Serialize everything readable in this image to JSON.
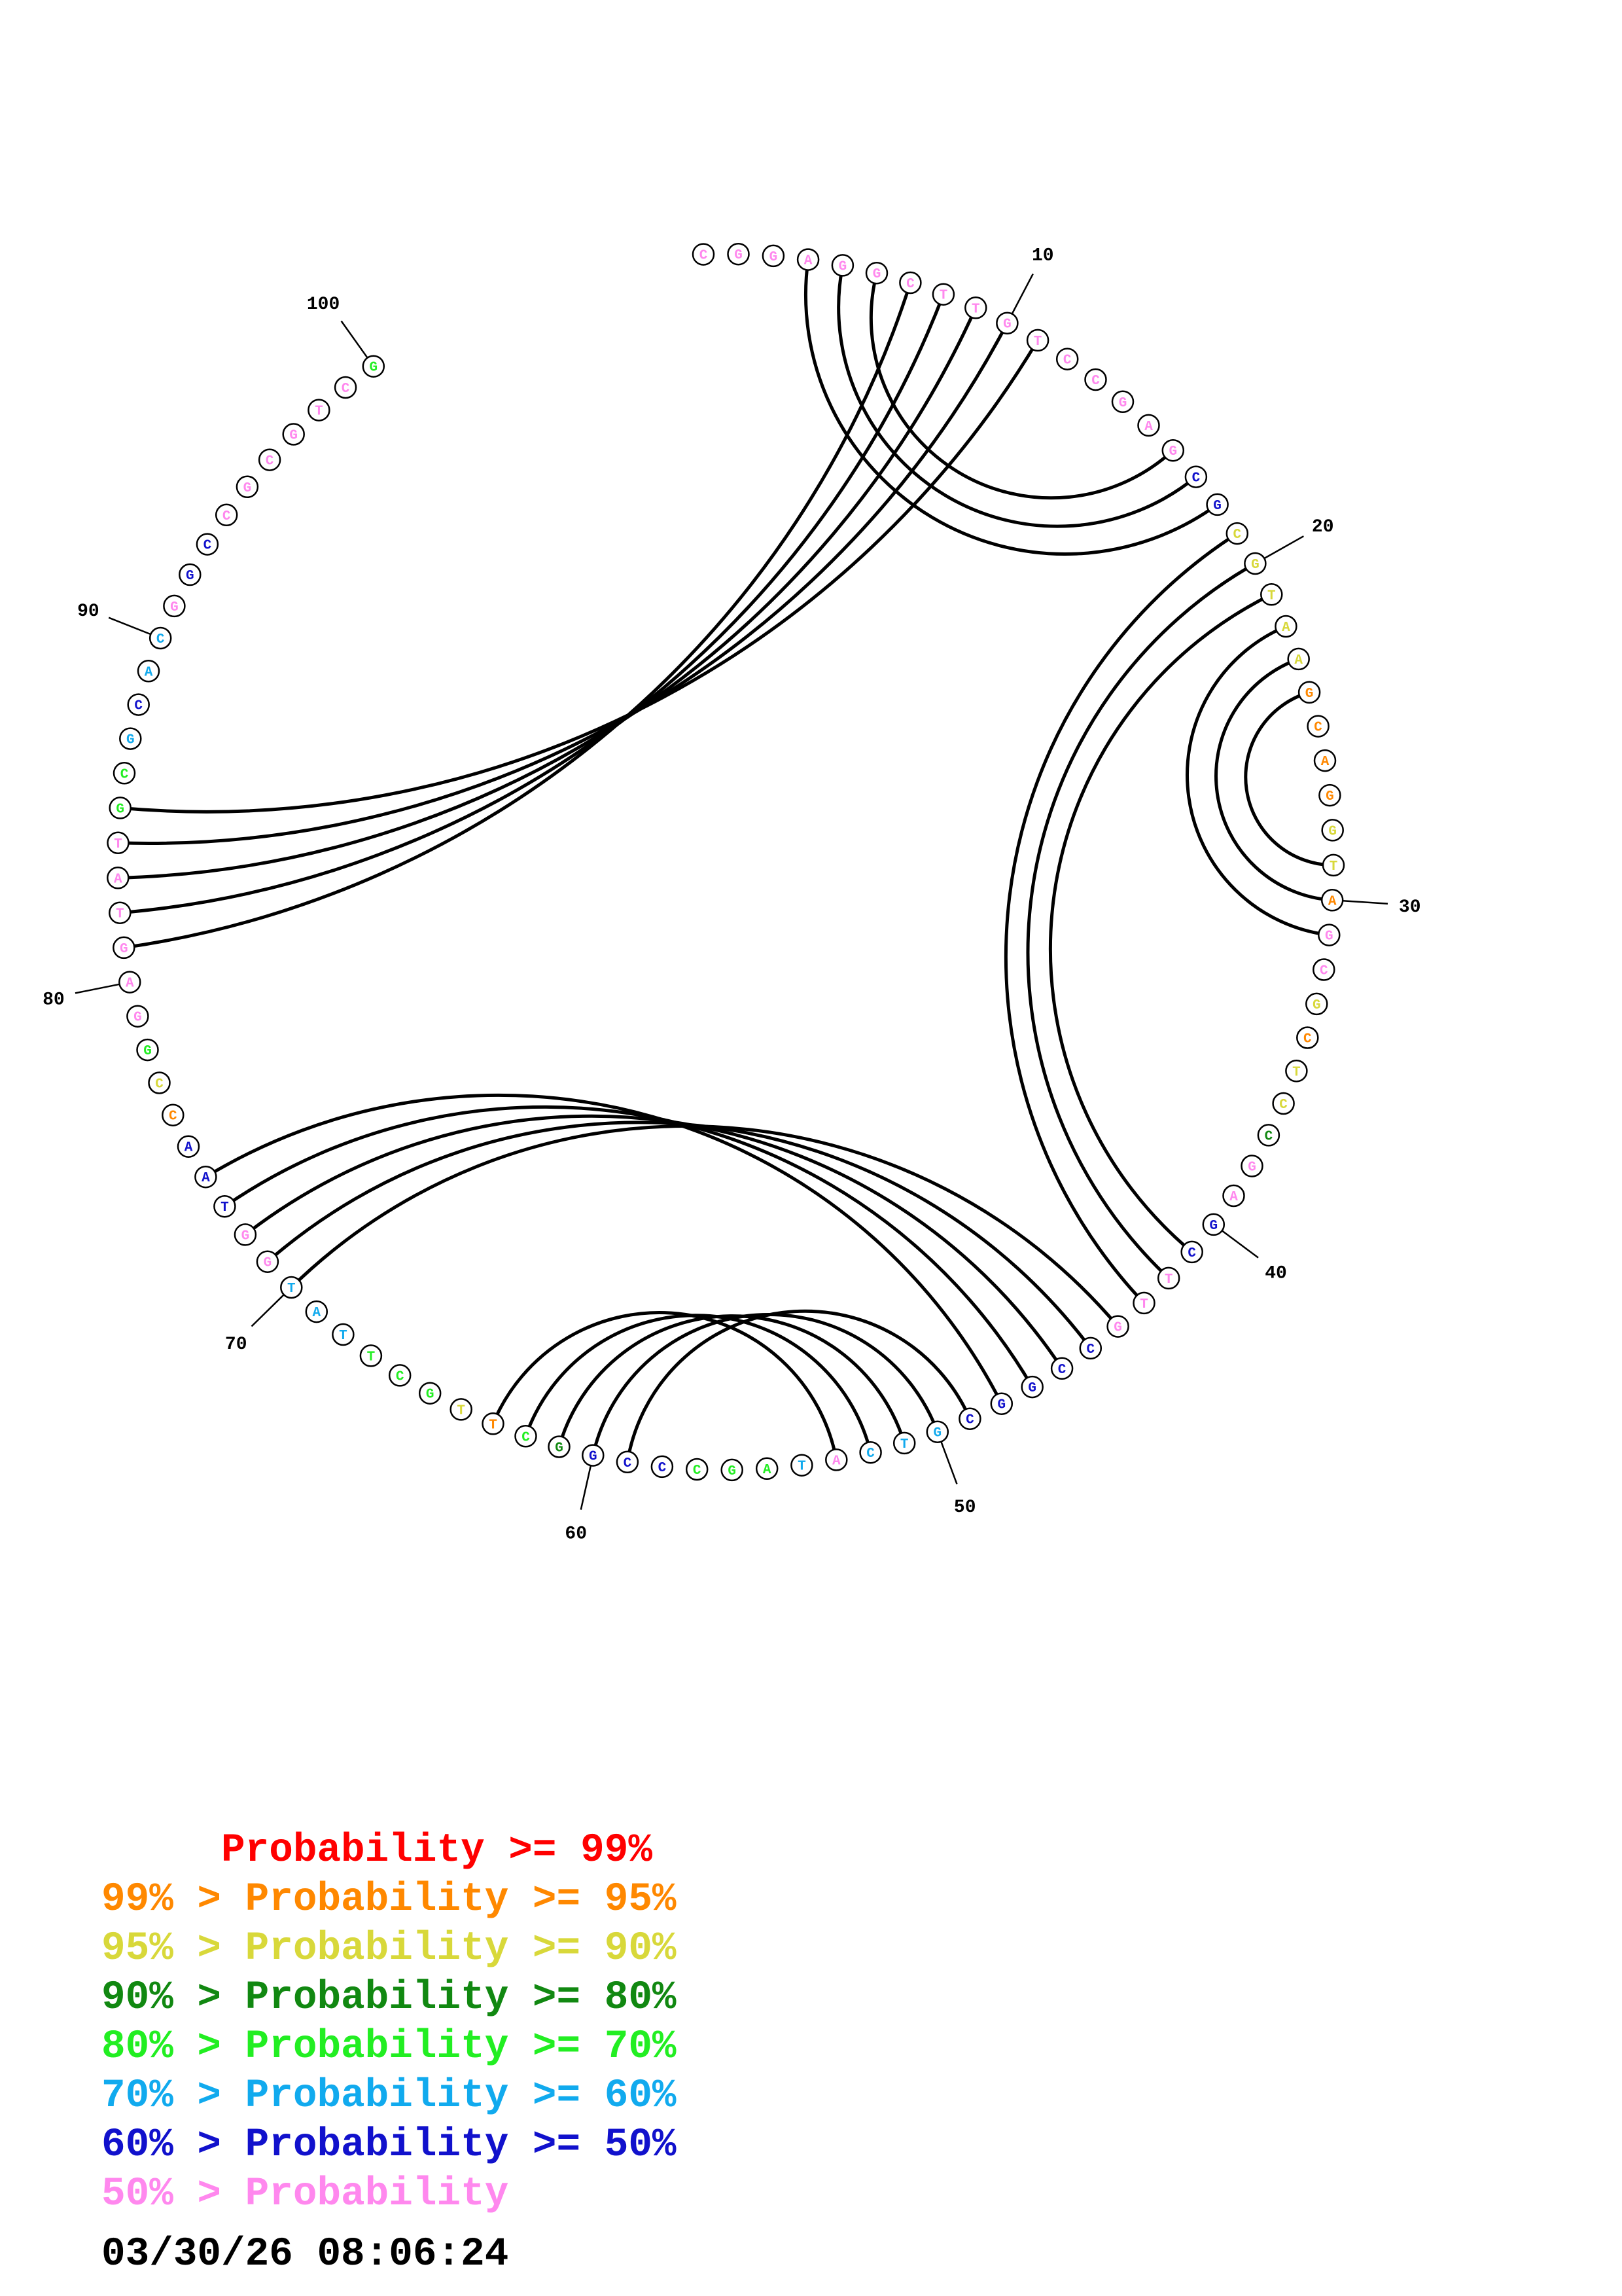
{
  "structure": {
    "sequence": "CGGAGGCTTGTCCGAGCGCGTAAGCAGGTAGCGCTCCGAGCTTGCCGGCGTCATAGCCCGGCTTGCTTATGGTAACCGGAGTATGCGCACGGCCGCGTCG",
    "probability_class": [
      7,
      7,
      7,
      7,
      7,
      7,
      7,
      7,
      7,
      7,
      7,
      7,
      7,
      7,
      7,
      7,
      6,
      6,
      2,
      2,
      2,
      2,
      2,
      1,
      1,
      1,
      1,
      2,
      2,
      1,
      7,
      7,
      2,
      1,
      2,
      2,
      3,
      7,
      7,
      6,
      6,
      7,
      7,
      7,
      6,
      6,
      6,
      6,
      6,
      5,
      5,
      5,
      7,
      5,
      4,
      4,
      4,
      6,
      6,
      6,
      3,
      4,
      1,
      2,
      4,
      4,
      4,
      5,
      5,
      5,
      7,
      7,
      6,
      6,
      6,
      1,
      2,
      4,
      7,
      7,
      7,
      7,
      7,
      7,
      4,
      4,
      5,
      6,
      5,
      5,
      7,
      6,
      6,
      7,
      7,
      7,
      7,
      7,
      7,
      4
    ],
    "pairs": [
      [
        4,
        18
      ],
      [
        5,
        17
      ],
      [
        6,
        16
      ],
      [
        7,
        81
      ],
      [
        8,
        82
      ],
      [
        9,
        83
      ],
      [
        10,
        84
      ],
      [
        11,
        85
      ],
      [
        19,
        43
      ],
      [
        20,
        42
      ],
      [
        21,
        41
      ],
      [
        22,
        31
      ],
      [
        23,
        30
      ],
      [
        24,
        29
      ],
      [
        44,
        70
      ],
      [
        45,
        71
      ],
      [
        46,
        72
      ],
      [
        47,
        73
      ],
      [
        48,
        74
      ],
      [
        49,
        59
      ],
      [
        50,
        60
      ],
      [
        51,
        61
      ],
      [
        52,
        62
      ],
      [
        53,
        63
      ]
    ],
    "tick_labels": [
      {
        "position": 10,
        "text": "10"
      },
      {
        "position": 20,
        "text": "20"
      },
      {
        "position": 30,
        "text": "30"
      },
      {
        "position": 40,
        "text": "40"
      },
      {
        "position": 50,
        "text": "50"
      },
      {
        "position": 60,
        "text": "60"
      },
      {
        "position": 70,
        "text": "70"
      },
      {
        "position": 80,
        "text": "80"
      },
      {
        "position": 90,
        "text": "90"
      },
      {
        "position": 100,
        "text": "100"
      }
    ]
  },
  "probability_colors": [
    "#ff0000",
    "#ff8800",
    "#d8d83a",
    "#118811",
    "#22ee22",
    "#11aaee",
    "#1111cc",
    "#ff88ee"
  ],
  "legend": [
    {
      "text": "     Probability >= 99%",
      "color": "#ff0000"
    },
    {
      "text": "99% > Probability >= 95%",
      "color": "#ff8800"
    },
    {
      "text": "95% > Probability >= 90%",
      "color": "#d8d83a"
    },
    {
      "text": "90% > Probability >= 80%",
      "color": "#118811"
    },
    {
      "text": "80% > Probability >= 70%",
      "color": "#22ee22"
    },
    {
      "text": "70% > Probability >= 60%",
      "color": "#11aaee"
    },
    {
      "text": "60% > Probability >= 50%",
      "color": "#1111cc"
    },
    {
      "text": "50% > Probability",
      "color": "#ff88ee"
    }
  ],
  "timestamp": "03/30/26 08:06:24"
}
